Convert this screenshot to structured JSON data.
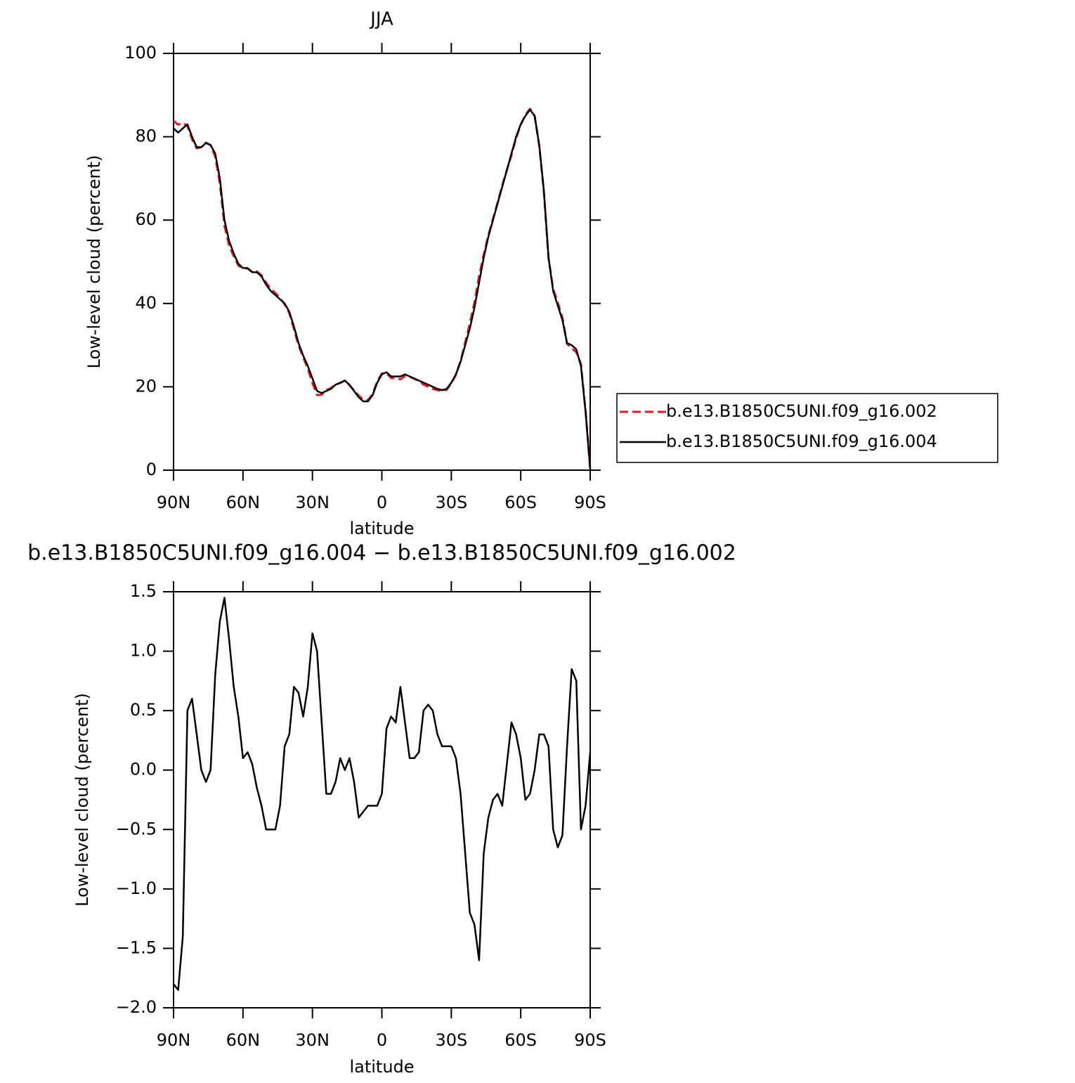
{
  "chart_data": [
    {
      "type": "line",
      "title": "JJA",
      "xlabel": "latitude",
      "ylabel": "Low-level cloud (percent)",
      "x": [
        90,
        88,
        86,
        84,
        82,
        80,
        78,
        76,
        74,
        72,
        70,
        68,
        66,
        64,
        62,
        60,
        58,
        56,
        54,
        52,
        50,
        48,
        46,
        44,
        42,
        40,
        38,
        36,
        34,
        32,
        30,
        28,
        26,
        24,
        22,
        20,
        18,
        16,
        14,
        12,
        10,
        8,
        6,
        4,
        2,
        0,
        -2,
        -4,
        -6,
        -8,
        -10,
        -12,
        -14,
        -16,
        -18,
        -20,
        -22,
        -24,
        -26,
        -28,
        -30,
        -32,
        -34,
        -36,
        -38,
        -40,
        -42,
        -44,
        -46,
        -48,
        -50,
        -52,
        -54,
        -56,
        -58,
        -60,
        -62,
        -64,
        -66,
        -68,
        -70,
        -72,
        -74,
        -76,
        -78,
        -80,
        -82,
        -84,
        -86,
        -88,
        -90
      ],
      "series": [
        {
          "name": "b.e13.B1850C5UNI.f09_g16.002",
          "color": "#e8191e",
          "line_style": "dashed",
          "values": [
            83.8,
            82.9,
            83.4,
            82.5,
            79.4,
            77.2,
            77.5,
            78.6,
            78,
            75.2,
            68.8,
            58.6,
            53.9,
            51.3,
            49.1,
            48.4,
            48.4,
            47.5,
            47.7,
            46.8,
            45,
            43.5,
            42.5,
            41.3,
            39.8,
            37.7,
            33.8,
            29.9,
            27.1,
            24.3,
            20.9,
            18,
            18.1,
            19.2,
            19.7,
            20.6,
            20.9,
            21.5,
            20.4,
            19.1,
            17.9,
            16.9,
            16.8,
            18.3,
            21.3,
            23.2,
            23.2,
            22.1,
            22.1,
            21.8,
            22.6,
            22.4,
            21.9,
            21.4,
            20.5,
            20,
            19.5,
            19.2,
            19,
            19.3,
            20.8,
            22.9,
            26.2,
            30.7,
            35.2,
            40.3,
            46.6,
            51.7,
            56.4,
            60.3,
            64.2,
            68.3,
            72,
            75.6,
            79.7,
            82.9,
            85.3,
            86.7,
            85,
            77.7,
            66.7,
            50.8,
            43.5,
            40.2,
            36.6,
            30.3,
            29.2,
            28.3,
            25.5,
            14.3,
            0.15
          ]
        },
        {
          "name": "b.e13.B1850C5UNI.f09_g16.004",
          "color": "#000000",
          "line_style": "solid",
          "values": [
            82,
            81,
            82,
            83,
            80,
            77.5,
            77.5,
            78.5,
            78,
            76,
            70,
            60,
            55,
            52,
            49.5,
            48.5,
            48.5,
            47.5,
            47.5,
            46.5,
            44.5,
            43,
            42,
            41,
            40,
            38,
            34.5,
            30.5,
            27.5,
            25,
            22,
            19,
            18.5,
            19,
            19.5,
            20.5,
            21,
            21.5,
            20.5,
            19,
            17.5,
            16.5,
            16.5,
            18,
            21,
            23,
            23.5,
            22.5,
            22.5,
            22.5,
            23,
            22.5,
            22,
            21.5,
            21,
            20.5,
            20,
            19.5,
            19.2,
            19.5,
            21,
            23,
            26,
            30,
            34,
            39,
            45,
            51,
            56,
            60,
            64,
            68,
            72,
            76,
            80,
            83,
            85,
            86.5,
            85,
            78,
            67,
            51,
            43,
            39.5,
            36,
            30.5,
            30,
            29,
            25,
            14,
            0.3
          ]
        }
      ],
      "xlim": [
        90,
        -90
      ],
      "xticks": [
        {
          "value": 90,
          "label": "90N"
        },
        {
          "value": 60,
          "label": "60N"
        },
        {
          "value": 30,
          "label": "30N"
        },
        0,
        {
          "value": -30,
          "label": "30S"
        },
        {
          "value": -60,
          "label": "60S"
        },
        {
          "value": -90,
          "label": "90S"
        }
      ],
      "ylim": [
        0,
        100
      ],
      "yticks": [
        0,
        20,
        40,
        60,
        80,
        100
      ],
      "legend": "right"
    },
    {
      "type": "line",
      "title": "b.e13.B1850C5UNI.f09_g16.004 − b.e13.B1850C5UNI.f09_g16.002",
      "xlabel": "latitude",
      "ylabel": "Low-level cloud (percent)",
      "x": [
        90,
        88,
        86,
        84,
        82,
        80,
        78,
        76,
        74,
        72,
        70,
        68,
        66,
        64,
        62,
        60,
        58,
        56,
        54,
        52,
        50,
        48,
        46,
        44,
        42,
        40,
        38,
        36,
        34,
        32,
        30,
        28,
        26,
        24,
        22,
        20,
        18,
        16,
        14,
        12,
        10,
        8,
        6,
        4,
        2,
        0,
        -2,
        -4,
        -6,
        -8,
        -10,
        -12,
        -14,
        -16,
        -18,
        -20,
        -22,
        -24,
        -26,
        -28,
        -30,
        -32,
        -34,
        -36,
        -38,
        -40,
        -42,
        -44,
        -46,
        -48,
        -50,
        -52,
        -54,
        -56,
        -58,
        -60,
        -62,
        -64,
        -66,
        -68,
        -70,
        -72,
        -74,
        -76,
        -78,
        -80,
        -82,
        -84,
        -86,
        -88,
        -90
      ],
      "series": [
        {
          "color": "#000000",
          "line_style": "solid",
          "values": [
            -1.8,
            -1.85,
            -1.4,
            0.5,
            0.6,
            0.3,
            0,
            -0.1,
            0,
            0.8,
            1.25,
            1.45,
            1.1,
            0.7,
            0.45,
            0.1,
            0.15,
            0.05,
            -0.15,
            -0.3,
            -0.5,
            -0.5,
            -0.5,
            -0.3,
            0.2,
            0.3,
            0.7,
            0.65,
            0.45,
            0.7,
            1.15,
            1,
            0.4,
            -0.2,
            -0.2,
            -0.1,
            0.1,
            0,
            0.1,
            -0.1,
            -0.4,
            -0.35,
            -0.3,
            -0.3,
            -0.3,
            -0.2,
            0.35,
            0.45,
            0.4,
            0.7,
            0.4,
            0.1,
            0.1,
            0.15,
            0.5,
            0.55,
            0.5,
            0.3,
            0.2,
            0.2,
            0.2,
            0.1,
            -0.2,
            -0.7,
            -1.2,
            -1.3,
            -1.6,
            -0.7,
            -0.4,
            -0.25,
            -0.2,
            -0.3,
            0.05,
            0.4,
            0.3,
            0.1,
            -0.25,
            -0.2,
            0,
            0.3,
            0.3,
            0.2,
            -0.5,
            -0.65,
            -0.55,
            0.2,
            0.85,
            0.75,
            -0.5,
            -0.3,
            0.15
          ]
        }
      ],
      "xlim": [
        90,
        -90
      ],
      "xticks": [
        {
          "value": 90,
          "label": "90N"
        },
        {
          "value": 60,
          "label": "60N"
        },
        {
          "value": 30,
          "label": "30N"
        },
        0,
        {
          "value": -30,
          "label": "30S"
        },
        {
          "value": -60,
          "label": "60S"
        },
        {
          "value": -90,
          "label": "90S"
        }
      ],
      "ylim": [
        -2,
        1.5
      ],
      "yticks": [
        {
          "value": -2,
          "label": "−2.0"
        },
        {
          "value": -1.5,
          "label": "−1.5"
        },
        {
          "value": -1,
          "label": "−1.0"
        },
        {
          "value": -0.5,
          "label": "−0.5"
        },
        {
          "value": 0,
          "label": "0.0"
        },
        {
          "value": 0.5,
          "label": "0.5"
        },
        {
          "value": 1,
          "label": "1.0"
        },
        1.5
      ]
    }
  ]
}
